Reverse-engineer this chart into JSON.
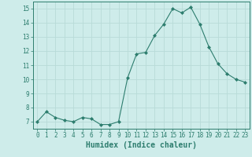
{
  "x": [
    0,
    1,
    2,
    3,
    4,
    5,
    6,
    7,
    8,
    9,
    10,
    11,
    12,
    13,
    14,
    15,
    16,
    17,
    18,
    19,
    20,
    21,
    22,
    23
  ],
  "y": [
    7.0,
    7.7,
    7.3,
    7.1,
    7.0,
    7.3,
    7.2,
    6.8,
    6.8,
    7.0,
    10.1,
    11.8,
    11.9,
    13.1,
    13.9,
    15.0,
    14.7,
    15.1,
    13.9,
    12.3,
    11.1,
    10.4,
    10.0,
    9.8
  ],
  "line_color": "#2d7d6e",
  "marker": "D",
  "marker_size": 2,
  "bg_color": "#ceecea",
  "grid_color": "#b8dbd8",
  "xlabel": "Humidex (Indice chaleur)",
  "xlim": [
    -0.5,
    23.5
  ],
  "ylim": [
    6.5,
    15.5
  ],
  "yticks": [
    7,
    8,
    9,
    10,
    11,
    12,
    13,
    14,
    15
  ],
  "xticks": [
    0,
    1,
    2,
    3,
    4,
    5,
    6,
    7,
    8,
    9,
    10,
    11,
    12,
    13,
    14,
    15,
    16,
    17,
    18,
    19,
    20,
    21,
    22,
    23
  ],
  "tick_color": "#2d7d6e",
  "label_fontsize": 5.5,
  "xlabel_fontsize": 7
}
